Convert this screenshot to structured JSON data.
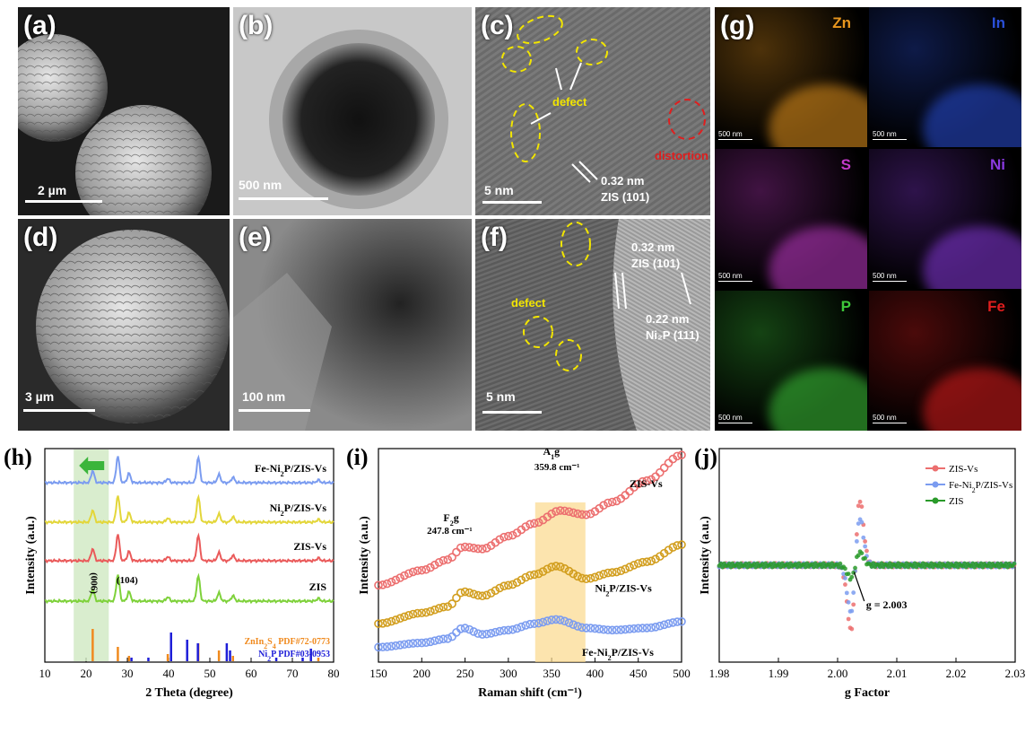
{
  "panels": {
    "a": {
      "label": "(a)",
      "scale": "2 µm"
    },
    "b": {
      "label": "(b)",
      "scale": "500 nm"
    },
    "c": {
      "label": "(c)",
      "scale": "5 nm",
      "defect": "defect",
      "distortion": "distortion",
      "spacing": "0.32 nm",
      "plane": "ZIS (101)"
    },
    "d": {
      "label": "(d)",
      "scale": "3 µm"
    },
    "e": {
      "label": "(e)",
      "scale": "100 nm"
    },
    "f": {
      "label": "(f)",
      "scale": "5 nm",
      "defect": "defect",
      "spacing1": "0.32 nm",
      "plane1": "ZIS (101)",
      "spacing2": "0.22 nm",
      "plane2": "Ni₂P (111)"
    },
    "g": {
      "label": "(g)",
      "elements": [
        {
          "symbol": "Zn",
          "scale": "500 nm",
          "color": "#e8961e"
        },
        {
          "symbol": "In",
          "scale": "500 nm",
          "color": "#2a4fd8"
        },
        {
          "symbol": "S",
          "scale": "500 nm",
          "color": "#c23ac8"
        },
        {
          "symbol": "Ni",
          "scale": "500 nm",
          "color": "#8a3ae0"
        },
        {
          "symbol": "P",
          "scale": "500 nm",
          "color": "#3ec83a"
        },
        {
          "symbol": "Fe",
          "scale": "500 nm",
          "color": "#e01e1e"
        }
      ]
    }
  },
  "chart_data": [
    {
      "id": "h",
      "label": "(h)",
      "type": "line",
      "xlabel": "2 Theta (degree)",
      "ylabel": "Intensity (a.u.)",
      "xlim": [
        10,
        80
      ],
      "xticks": [
        10,
        20,
        30,
        40,
        50,
        60,
        70,
        80
      ],
      "series": [
        {
          "name": "Fe-Ni2P/ZIS-Vs",
          "color": "#7b9cf0",
          "offset": 3
        },
        {
          "name": "Ni2P/ZIS-Vs",
          "color": "#e3d63a",
          "offset": 2
        },
        {
          "name": "ZIS-Vs",
          "color": "#ea5a5a",
          "offset": 1
        },
        {
          "name": "ZIS",
          "color": "#7ed13a",
          "offset": 0
        }
      ],
      "peaks": [
        {
          "x": 21.6,
          "h": 0.45
        },
        {
          "x": 27.7,
          "h": 1.0
        },
        {
          "x": 30.4,
          "h": 0.35
        },
        {
          "x": 39.8,
          "h": 0.15
        },
        {
          "x": 47.2,
          "h": 0.95
        },
        {
          "x": 52.2,
          "h": 0.3
        },
        {
          "x": 55.6,
          "h": 0.2
        },
        {
          "x": 76.3,
          "h": 0.1
        }
      ],
      "peak_labels": [
        {
          "x": 21.6,
          "text": "(006)"
        },
        {
          "x": 30.4,
          "text": "(104)"
        }
      ],
      "highlight_range": [
        17,
        25.5
      ],
      "references": [
        {
          "name": "ZnIn2S4 PDF#72-0773",
          "color": "#f08a1e",
          "lines": [
            {
              "x": 21.6,
              "h": 0.9
            },
            {
              "x": 27.7,
              "h": 0.4
            },
            {
              "x": 30.4,
              "h": 0.15
            },
            {
              "x": 39.8,
              "h": 0.2
            },
            {
              "x": 47.2,
              "h": 0.5
            },
            {
              "x": 52.2,
              "h": 0.3
            },
            {
              "x": 55.6,
              "h": 0.15
            },
            {
              "x": 76.3,
              "h": 0.1
            }
          ]
        },
        {
          "name": "Ni2P PDF#03-0953",
          "color": "#1e1ed8",
          "lines": [
            {
              "x": 31.0,
              "h": 0.1
            },
            {
              "x": 35.1,
              "h": 0.1
            },
            {
              "x": 40.6,
              "h": 0.8
            },
            {
              "x": 44.5,
              "h": 0.6
            },
            {
              "x": 47.1,
              "h": 0.5
            },
            {
              "x": 54.1,
              "h": 0.5
            },
            {
              "x": 54.9,
              "h": 0.3
            },
            {
              "x": 66.1,
              "h": 0.1
            },
            {
              "x": 72.5,
              "h": 0.1
            },
            {
              "x": 74.5,
              "h": 0.35
            }
          ]
        }
      ]
    },
    {
      "id": "i",
      "label": "(i)",
      "type": "line",
      "xlabel": "Raman shift (cm⁻¹)",
      "ylabel": "Intensity (a.u.)",
      "xlim": [
        150,
        500
      ],
      "xticks": [
        150,
        200,
        250,
        300,
        350,
        400,
        450,
        500
      ],
      "highlight_range": [
        331,
        389
      ],
      "annotations": {
        "f2g": "F2g",
        "f2g_value": "247.8 cm⁻¹",
        "a1g": "A1g",
        "a1g_value": "359.8 cm⁻¹"
      },
      "series": [
        {
          "name": "ZIS-Vs",
          "color": "#ec6f6f",
          "y": [
            [
              150,
              0.36
            ],
            [
              200,
              0.43
            ],
            [
              230,
              0.48
            ],
            [
              248,
              0.54
            ],
            [
              270,
              0.53
            ],
            [
              300,
              0.59
            ],
            [
              330,
              0.65
            ],
            [
              360,
              0.71
            ],
            [
              390,
              0.69
            ],
            [
              420,
              0.75
            ],
            [
              460,
              0.85
            ],
            [
              500,
              0.97
            ]
          ]
        },
        {
          "name": "Ni2P/ZIS-Vs",
          "color": "#d29e1e",
          "y": [
            [
              150,
              0.18
            ],
            [
              200,
              0.23
            ],
            [
              230,
              0.26
            ],
            [
              248,
              0.33
            ],
            [
              270,
              0.31
            ],
            [
              300,
              0.36
            ],
            [
              330,
              0.41
            ],
            [
              355,
              0.45
            ],
            [
              390,
              0.39
            ],
            [
              420,
              0.42
            ],
            [
              460,
              0.47
            ],
            [
              500,
              0.55
            ]
          ]
        },
        {
          "name": "Fe-Ni2P/ZIS-Vs",
          "color": "#7b9cf0",
          "y": [
            [
              150,
              0.07
            ],
            [
              200,
              0.09
            ],
            [
              230,
              0.11
            ],
            [
              248,
              0.16
            ],
            [
              270,
              0.13
            ],
            [
              300,
              0.15
            ],
            [
              330,
              0.18
            ],
            [
              355,
              0.2
            ],
            [
              390,
              0.16
            ],
            [
              420,
              0.15
            ],
            [
              460,
              0.16
            ],
            [
              500,
              0.19
            ]
          ]
        }
      ]
    },
    {
      "id": "j",
      "label": "(j)",
      "type": "line",
      "xlabel": "g Factor",
      "ylabel": "Intensity (a.u.)",
      "xlim": [
        1.98,
        2.03
      ],
      "xticks": [
        "1.98",
        "1.99",
        "2.00",
        "2.01",
        "2.02",
        "2.03"
      ],
      "annotation": "g = 2.003",
      "center": 2.003,
      "series": [
        {
          "name": "ZIS-Vs",
          "color": "#ec6f6f",
          "amp": 1.0
        },
        {
          "name": "Fe-Ni2P/ZIS-Vs",
          "color": "#7b9cf0",
          "amp": 0.72
        },
        {
          "name": "ZIS",
          "color": "#2a9a2a",
          "amp": 0.2
        }
      ]
    }
  ]
}
